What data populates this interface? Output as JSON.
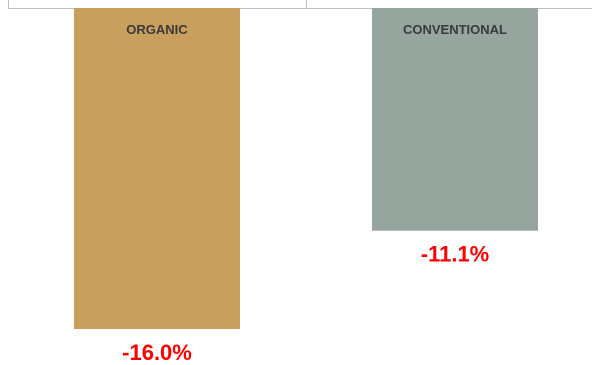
{
  "chart_data": {
    "type": "bar",
    "categories": [
      "ORGANIC",
      "CONVENTIONAL"
    ],
    "values": [
      -16.0,
      -11.1
    ],
    "value_labels": [
      "-16.0%",
      "-11.1%"
    ],
    "title": "",
    "xlabel": "",
    "ylabel": "",
    "ylim": [
      -16.0,
      0
    ],
    "grid": false,
    "legend": "none",
    "colors": {
      "bars": [
        "#C89F5C",
        "#96A59D"
      ],
      "value_labels": "#FF0000",
      "axis": "#BFBFBF"
    }
  }
}
